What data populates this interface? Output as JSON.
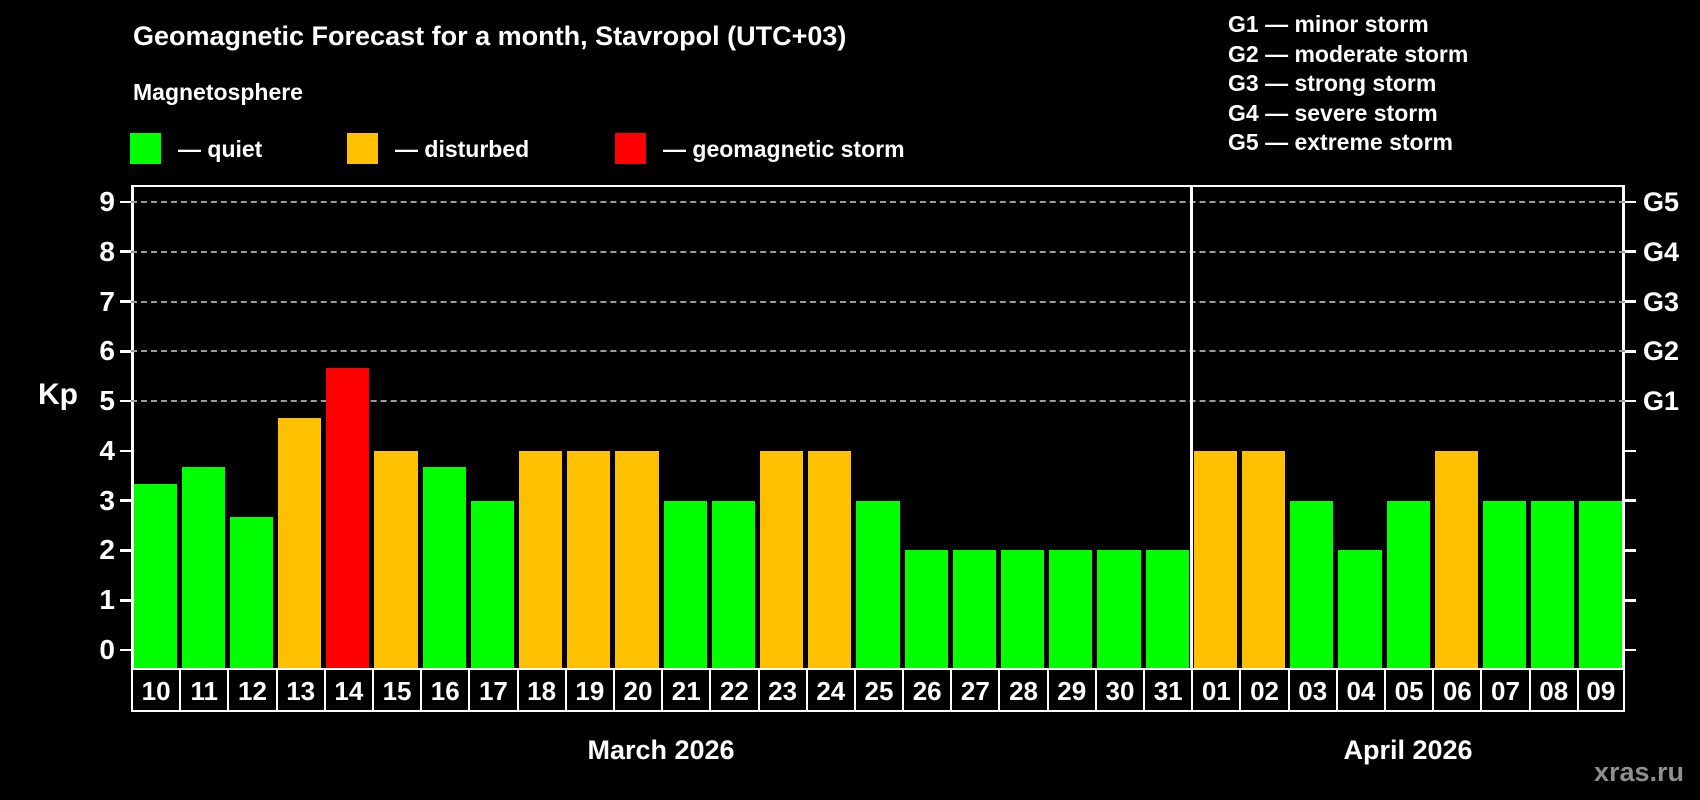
{
  "title": "Geomagnetic Forecast for a month, Stavropol (UTC+03)",
  "subtitle": "Magnetosphere",
  "legend": {
    "items": [
      {
        "status": "quiet",
        "label": "— quiet",
        "color": "#00ff00"
      },
      {
        "status": "disturbed",
        "label": "— disturbed",
        "color": "#ffc000"
      },
      {
        "status": "storm",
        "label": "— geomagnetic storm",
        "color": "#ff0000"
      }
    ]
  },
  "storm_scale_legend": [
    "G1 — minor storm",
    "G2 — moderate storm",
    "G3 — strong storm",
    "G4 — severe storm",
    "G5 — extreme storm"
  ],
  "watermark": "xras.ru",
  "chart_data": {
    "type": "bar",
    "ylabel": "Kp",
    "ylim": [
      -0.36,
      9.34
    ],
    "grid": "dashed horizontal at Kp 5-9",
    "gridlines_kp": [
      5,
      6,
      7,
      8,
      9
    ],
    "y_ticks": [
      0,
      1,
      2,
      3,
      4,
      5,
      6,
      7,
      8,
      9
    ],
    "right_axis_labels": [
      {
        "text": "G1",
        "kp": 5
      },
      {
        "text": "G2",
        "kp": 6
      },
      {
        "text": "G3",
        "kp": 7
      },
      {
        "text": "G4",
        "kp": 8
      },
      {
        "text": "G5",
        "kp": 9
      }
    ],
    "months": [
      {
        "label": "March 2026",
        "bars": [
          {
            "day": "10",
            "kp": 3.33,
            "status": "quiet"
          },
          {
            "day": "11",
            "kp": 3.67,
            "status": "quiet"
          },
          {
            "day": "12",
            "kp": 2.67,
            "status": "quiet"
          },
          {
            "day": "13",
            "kp": 4.67,
            "status": "disturbed"
          },
          {
            "day": "14",
            "kp": 5.67,
            "status": "storm"
          },
          {
            "day": "15",
            "kp": 4.0,
            "status": "disturbed"
          },
          {
            "day": "16",
            "kp": 3.67,
            "status": "quiet"
          },
          {
            "day": "17",
            "kp": 3.0,
            "status": "quiet"
          },
          {
            "day": "18",
            "kp": 4.0,
            "status": "disturbed"
          },
          {
            "day": "19",
            "kp": 4.0,
            "status": "disturbed"
          },
          {
            "day": "20",
            "kp": 4.0,
            "status": "disturbed"
          },
          {
            "day": "21",
            "kp": 3.0,
            "status": "quiet"
          },
          {
            "day": "22",
            "kp": 3.0,
            "status": "quiet"
          },
          {
            "day": "23",
            "kp": 4.0,
            "status": "disturbed"
          },
          {
            "day": "24",
            "kp": 4.0,
            "status": "disturbed"
          },
          {
            "day": "25",
            "kp": 3.0,
            "status": "quiet"
          },
          {
            "day": "26",
            "kp": 2.0,
            "status": "quiet"
          },
          {
            "day": "27",
            "kp": 2.0,
            "status": "quiet"
          },
          {
            "day": "28",
            "kp": 2.0,
            "status": "quiet"
          },
          {
            "day": "29",
            "kp": 2.0,
            "status": "quiet"
          },
          {
            "day": "30",
            "kp": 2.0,
            "status": "quiet"
          },
          {
            "day": "31",
            "kp": 2.0,
            "status": "quiet"
          }
        ]
      },
      {
        "label": "April 2026",
        "bars": [
          {
            "day": "01",
            "kp": 4.0,
            "status": "disturbed"
          },
          {
            "day": "02",
            "kp": 4.0,
            "status": "disturbed"
          },
          {
            "day": "03",
            "kp": 3.0,
            "status": "quiet"
          },
          {
            "day": "04",
            "kp": 2.0,
            "status": "quiet"
          },
          {
            "day": "05",
            "kp": 3.0,
            "status": "quiet"
          },
          {
            "day": "06",
            "kp": 4.0,
            "status": "disturbed"
          },
          {
            "day": "07",
            "kp": 3.0,
            "status": "quiet"
          },
          {
            "day": "08",
            "kp": 3.0,
            "status": "quiet"
          },
          {
            "day": "09",
            "kp": 3.0,
            "status": "quiet"
          }
        ]
      }
    ]
  }
}
